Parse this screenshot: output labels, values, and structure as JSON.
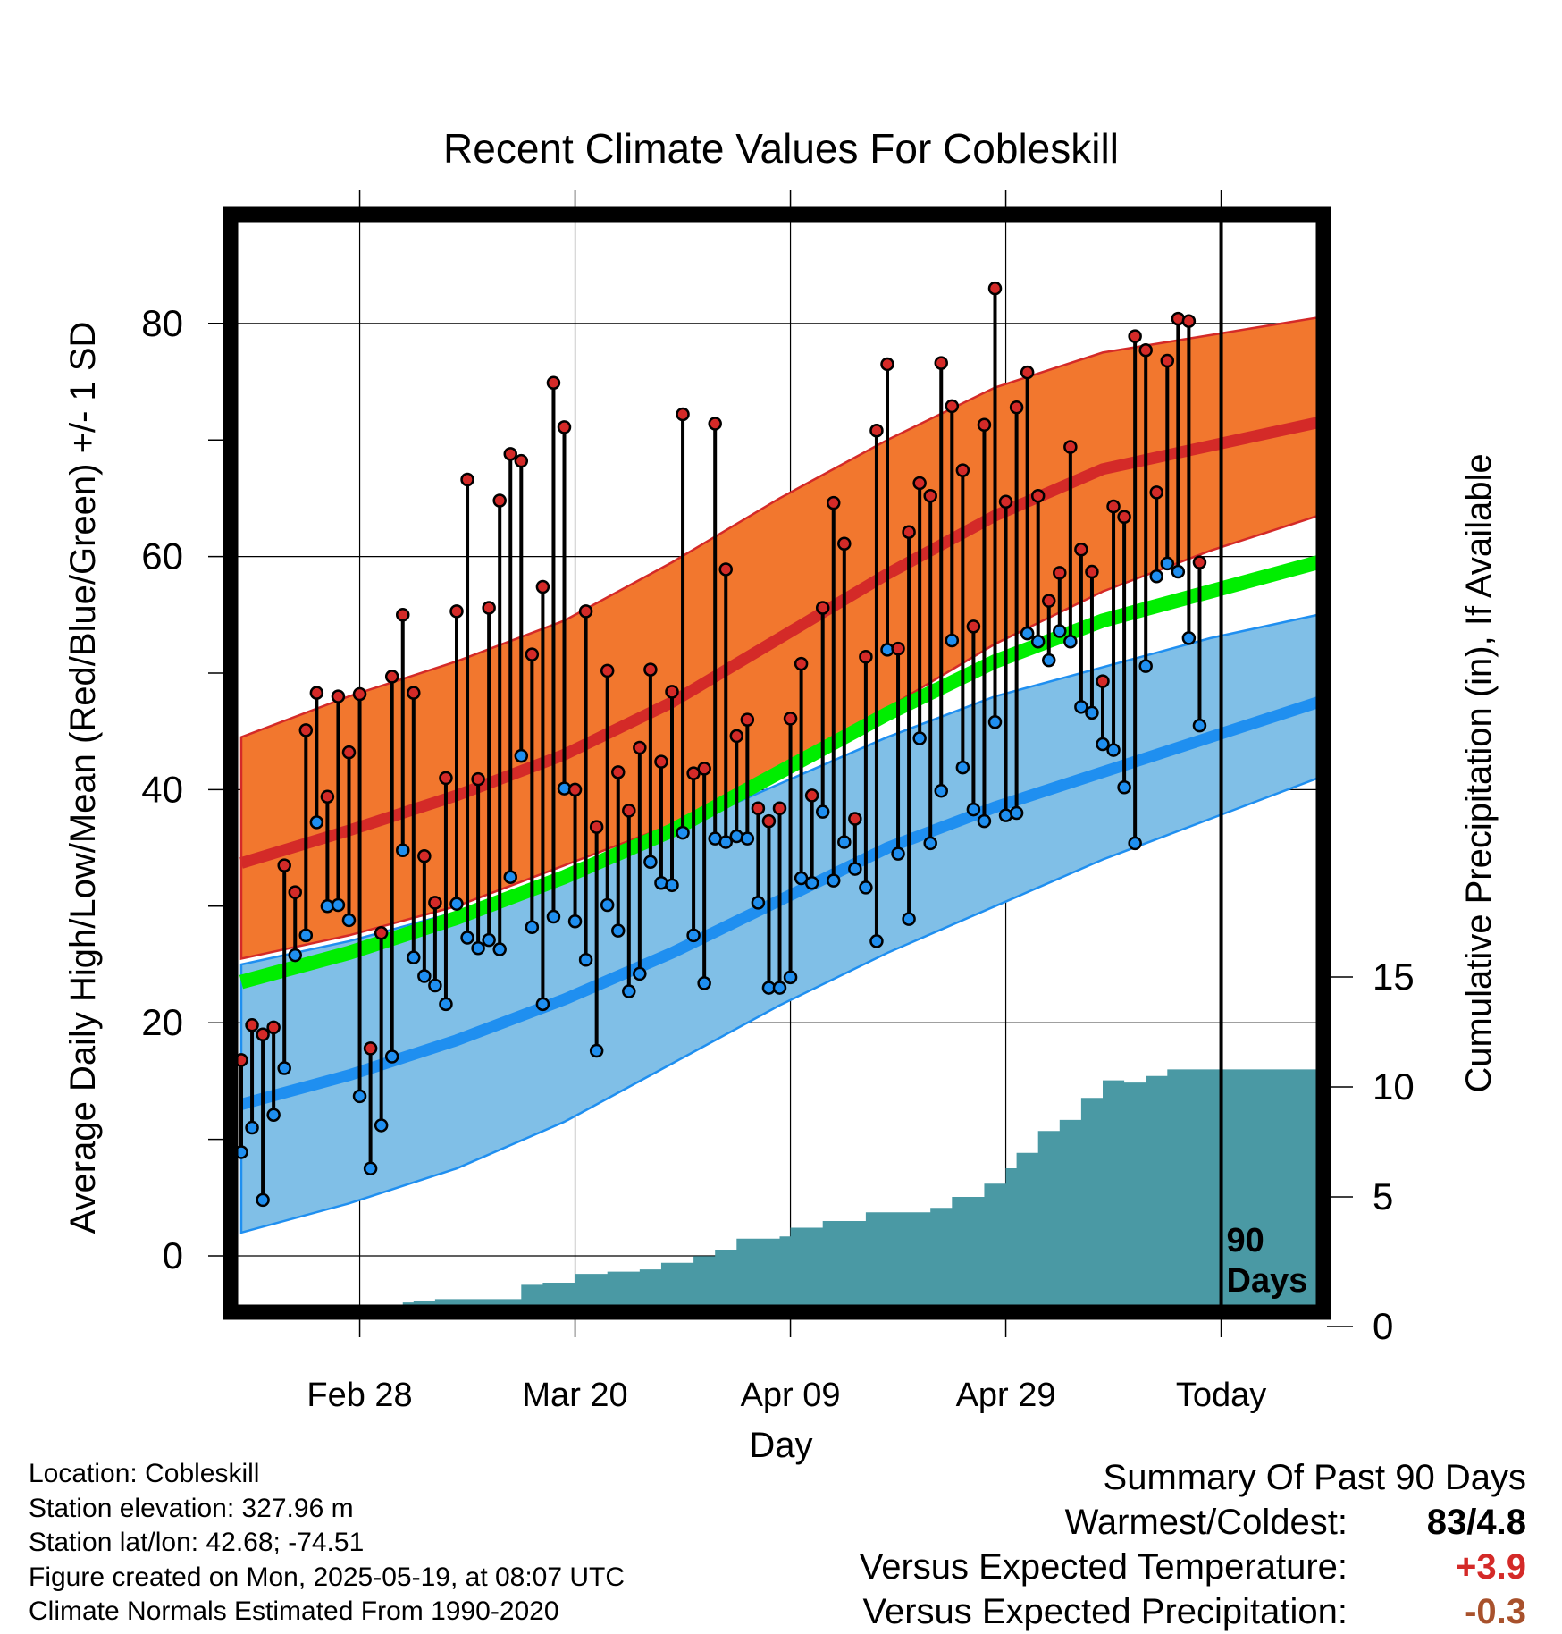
{
  "title": "Recent Climate Values For Cobleskill",
  "xlabel": "Day",
  "ylabel_left": "Average Daily High/Low/Mean (Red/Blue/Green) +/- 1 SD",
  "ylabel_right": "Cumulative Precipitation (in), If Available",
  "today_marker_label": "90\nDays",
  "footer": [
    "Location: Cobleskill",
    "Station elevation: 327.96 m",
    "Station lat/lon: 42.68; -74.51",
    "Figure created on Mon, 2025-05-19, at 08:07 UTC",
    "Climate Normals Estimated From 1990-2020"
  ],
  "summary": {
    "heading": "Summary Of Past 90 Days",
    "warmest_coldest_label": "Warmest/Coldest:",
    "warmest_coldest_value": "83/4.8",
    "temp_label": "Versus Expected Temperature:",
    "temp_value": "+3.9",
    "precip_label": "Versus Expected Precipitation:",
    "precip_value": "-0.3"
  },
  "colors": {
    "high_band": "#f2772e",
    "high_line": "#d42a28",
    "low_band": "#80bfe7",
    "low_line": "#1f8ff0",
    "mean_line": "#00ee00",
    "precip": "#4a99a4",
    "temp_value": "#d42a28",
    "precip_value": "#a8512c"
  },
  "chart_data": {
    "type": "line",
    "x_ticks": [
      {
        "day": 11,
        "label": "Feb 28"
      },
      {
        "day": 31,
        "label": "Mar 20"
      },
      {
        "day": 51,
        "label": "Apr 09"
      },
      {
        "day": 71,
        "label": "Apr 29"
      },
      {
        "day": 91,
        "label": "Today"
      }
    ],
    "xlim": [
      0,
      100
    ],
    "today_day": 91,
    "ylim_temp": [
      -5,
      87
    ],
    "yticks_temp": [
      0,
      20,
      40,
      60,
      80
    ],
    "ylim_precip": [
      0,
      15
    ],
    "yticks_precip": [
      0,
      5,
      10,
      15
    ],
    "normals": {
      "days": [
        0,
        10,
        20,
        30,
        40,
        50,
        60,
        70,
        80,
        90,
        100
      ],
      "high_mean": [
        33.7,
        36.5,
        39.5,
        43.0,
        47.5,
        53.0,
        58.5,
        63.5,
        67.5,
        69.5,
        71.5
      ],
      "high_upper": [
        44.5,
        48.0,
        51.0,
        54.5,
        59.5,
        65.0,
        70.0,
        74.5,
        77.5,
        79.0,
        80.5
      ],
      "high_lower": [
        25.5,
        27.5,
        30.0,
        33.5,
        37.0,
        41.5,
        47.0,
        52.5,
        57.0,
        60.5,
        63.5
      ],
      "low_mean": [
        13.0,
        15.5,
        18.5,
        22.0,
        26.0,
        30.5,
        35.0,
        38.5,
        41.5,
        44.5,
        47.5
      ],
      "low_upper": [
        25.0,
        27.0,
        29.5,
        33.0,
        36.5,
        40.5,
        44.5,
        48.0,
        50.5,
        53.0,
        55.0
      ],
      "low_lower": [
        2.0,
        4.5,
        7.5,
        11.5,
        16.5,
        21.5,
        26.0,
        30.0,
        34.0,
        37.5,
        41.0
      ],
      "mean": [
        23.5,
        26.0,
        29.0,
        32.5,
        36.5,
        41.5,
        46.5,
        51.0,
        54.5,
        57.0,
        59.5
      ]
    },
    "daily": [
      {
        "day": 0,
        "high": 16.8,
        "low": 8.9
      },
      {
        "day": 1,
        "high": 19.8,
        "low": 11.0
      },
      {
        "day": 2,
        "high": 19.0,
        "low": 4.8
      },
      {
        "day": 3,
        "high": 19.6,
        "low": 12.1
      },
      {
        "day": 4,
        "high": 33.5,
        "low": 16.1
      },
      {
        "day": 5,
        "high": 31.2,
        "low": 25.8
      },
      {
        "day": 6,
        "high": 45.1,
        "low": 27.5
      },
      {
        "day": 7,
        "high": 48.3,
        "low": 37.2
      },
      {
        "day": 8,
        "high": 39.4,
        "low": 30.0
      },
      {
        "day": 9,
        "high": 48.0,
        "low": 30.1
      },
      {
        "day": 10,
        "high": 43.2,
        "low": 28.8
      },
      {
        "day": 11,
        "high": 48.2,
        "low": 13.7
      },
      {
        "day": 12,
        "high": 17.8,
        "low": 7.5
      },
      {
        "day": 13,
        "high": 27.7,
        "low": 11.2
      },
      {
        "day": 14,
        "high": 49.7,
        "low": 17.1
      },
      {
        "day": 15,
        "high": 55.0,
        "low": 34.8
      },
      {
        "day": 16,
        "high": 48.3,
        "low": 25.6
      },
      {
        "day": 17,
        "high": 34.3,
        "low": 24.0
      },
      {
        "day": 18,
        "high": 30.3,
        "low": 23.2
      },
      {
        "day": 19,
        "high": 41.0,
        "low": 21.6
      },
      {
        "day": 20,
        "high": 55.3,
        "low": 30.2
      },
      {
        "day": 21,
        "high": 66.6,
        "low": 27.3
      },
      {
        "day": 22,
        "high": 40.9,
        "low": 26.4
      },
      {
        "day": 23,
        "high": 55.6,
        "low": 27.1
      },
      {
        "day": 24,
        "high": 64.8,
        "low": 26.3
      },
      {
        "day": 25,
        "high": 68.8,
        "low": 32.5
      },
      {
        "day": 26,
        "high": 68.2,
        "low": 42.9
      },
      {
        "day": 27,
        "high": 51.6,
        "low": 28.2
      },
      {
        "day": 28,
        "high": 57.4,
        "low": 21.6
      },
      {
        "day": 29,
        "high": 74.9,
        "low": 29.1
      },
      {
        "day": 30,
        "high": 71.1,
        "low": 40.1
      },
      {
        "day": 31,
        "high": 40.0,
        "low": 28.7
      },
      {
        "day": 32,
        "high": 55.3,
        "low": 25.4
      },
      {
        "day": 33,
        "high": 36.8,
        "low": 17.6
      },
      {
        "day": 34,
        "high": 50.2,
        "low": 30.1
      },
      {
        "day": 35,
        "high": 41.5,
        "low": 27.9
      },
      {
        "day": 36,
        "high": 38.2,
        "low": 22.7
      },
      {
        "day": 37,
        "high": 43.6,
        "low": 24.2
      },
      {
        "day": 38,
        "high": 50.3,
        "low": 33.8
      },
      {
        "day": 39,
        "high": 42.4,
        "low": 32.0
      },
      {
        "day": 40,
        "high": 48.4,
        "low": 31.8
      },
      {
        "day": 41,
        "high": 72.2,
        "low": 36.3
      },
      {
        "day": 42,
        "high": 41.4,
        "low": 27.5
      },
      {
        "day": 43,
        "high": 41.8,
        "low": 23.4
      },
      {
        "day": 44,
        "high": 71.4,
        "low": 35.8
      },
      {
        "day": 45,
        "high": 58.9,
        "low": 35.5
      },
      {
        "day": 46,
        "high": 44.6,
        "low": 36.0
      },
      {
        "day": 47,
        "high": 46.0,
        "low": 35.8
      },
      {
        "day": 48,
        "high": 38.4,
        "low": 30.3
      },
      {
        "day": 49,
        "high": 37.3,
        "low": 23.0
      },
      {
        "day": 50,
        "high": 38.4,
        "low": 23.0
      },
      {
        "day": 51,
        "high": 46.1,
        "low": 23.9
      },
      {
        "day": 52,
        "high": 50.8,
        "low": 32.4
      },
      {
        "day": 53,
        "high": 39.5,
        "low": 32.0
      },
      {
        "day": 54,
        "high": 55.6,
        "low": 38.1
      },
      {
        "day": 55,
        "high": 64.6,
        "low": 32.2
      },
      {
        "day": 56,
        "high": 61.1,
        "low": 35.5
      },
      {
        "day": 57,
        "high": 37.5,
        "low": 33.2
      },
      {
        "day": 58,
        "high": 51.4,
        "low": 31.6
      },
      {
        "day": 59,
        "high": 70.8,
        "low": 27.0
      },
      {
        "day": 60,
        "high": 76.5,
        "low": 52.0
      },
      {
        "day": 61,
        "high": 52.1,
        "low": 34.5
      },
      {
        "day": 62,
        "high": 62.1,
        "low": 28.9
      },
      {
        "day": 63,
        "high": 66.3,
        "low": 44.4
      },
      {
        "day": 64,
        "high": 65.2,
        "low": 35.4
      },
      {
        "day": 65,
        "high": 76.6,
        "low": 39.9
      },
      {
        "day": 66,
        "high": 72.9,
        "low": 52.8
      },
      {
        "day": 67,
        "high": 67.4,
        "low": 41.9
      },
      {
        "day": 68,
        "high": 54.0,
        "low": 38.3
      },
      {
        "day": 69,
        "high": 71.3,
        "low": 37.3
      },
      {
        "day": 70,
        "high": 83.0,
        "low": 45.8
      },
      {
        "day": 71,
        "high": 64.7,
        "low": 37.8
      },
      {
        "day": 72,
        "high": 72.8,
        "low": 38.0
      },
      {
        "day": 73,
        "high": 75.8,
        "low": 53.4
      },
      {
        "day": 74,
        "high": 65.2,
        "low": 52.7
      },
      {
        "day": 75,
        "high": 56.2,
        "low": 51.1
      },
      {
        "day": 76,
        "high": 58.6,
        "low": 53.6
      },
      {
        "day": 77,
        "high": 69.4,
        "low": 52.7
      },
      {
        "day": 78,
        "high": 60.6,
        "low": 47.1
      },
      {
        "day": 79,
        "high": 58.7,
        "low": 46.6
      },
      {
        "day": 80,
        "high": 49.3,
        "low": 43.9
      },
      {
        "day": 81,
        "high": 64.3,
        "low": 43.4
      },
      {
        "day": 82,
        "high": 63.4,
        "low": 40.2
      },
      {
        "day": 83,
        "high": 78.9,
        "low": 35.4
      },
      {
        "day": 84,
        "high": 77.7,
        "low": 50.6
      },
      {
        "day": 85,
        "high": 65.5,
        "low": 58.3
      },
      {
        "day": 86,
        "high": 76.8,
        "low": 59.4
      },
      {
        "day": 87,
        "high": 80.4,
        "low": 58.7
      },
      {
        "day": 88,
        "high": 80.2,
        "low": 53.0
      },
      {
        "day": 89,
        "high": 59.5,
        "low": 45.5
      }
    ],
    "cumulative_precip": [
      {
        "day": 14,
        "value": 0.0
      },
      {
        "day": 15,
        "value": 0.2
      },
      {
        "day": 16,
        "value": 0.25
      },
      {
        "day": 18,
        "value": 0.35
      },
      {
        "day": 25,
        "value": 0.35
      },
      {
        "day": 26,
        "value": 1.0
      },
      {
        "day": 28,
        "value": 1.1
      },
      {
        "day": 31,
        "value": 1.5
      },
      {
        "day": 34,
        "value": 1.6
      },
      {
        "day": 37,
        "value": 1.7
      },
      {
        "day": 39,
        "value": 2.0
      },
      {
        "day": 42,
        "value": 2.3
      },
      {
        "day": 44,
        "value": 2.6
      },
      {
        "day": 46,
        "value": 3.1
      },
      {
        "day": 50,
        "value": 3.2
      },
      {
        "day": 51,
        "value": 3.6
      },
      {
        "day": 54,
        "value": 3.9
      },
      {
        "day": 58,
        "value": 4.3
      },
      {
        "day": 64,
        "value": 4.5
      },
      {
        "day": 66,
        "value": 5.0
      },
      {
        "day": 69,
        "value": 5.6
      },
      {
        "day": 71,
        "value": 6.3
      },
      {
        "day": 72,
        "value": 7.0
      },
      {
        "day": 74,
        "value": 8.0
      },
      {
        "day": 76,
        "value": 8.5
      },
      {
        "day": 78,
        "value": 9.5
      },
      {
        "day": 80,
        "value": 10.3
      },
      {
        "day": 82,
        "value": 10.2
      },
      {
        "day": 84,
        "value": 10.5
      },
      {
        "day": 86,
        "value": 10.8
      },
      {
        "day": 89,
        "value": 10.8
      },
      {
        "day": 100,
        "value": 10.8
      }
    ]
  }
}
